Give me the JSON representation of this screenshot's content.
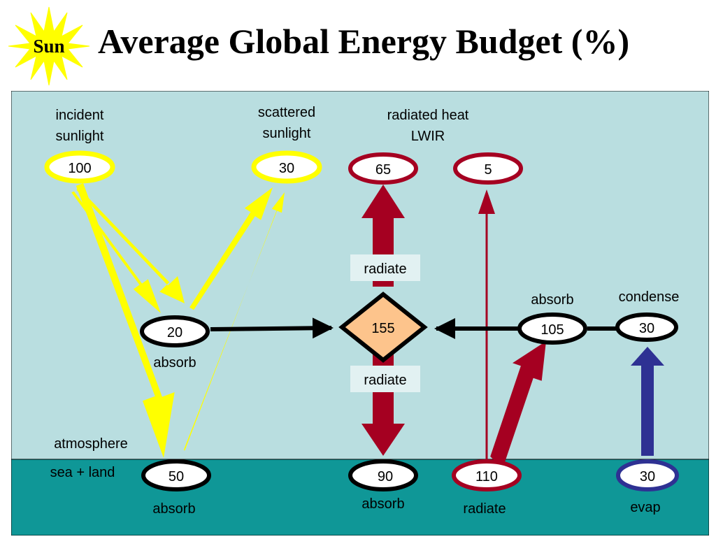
{
  "title": "Average Global Energy Budget (%)",
  "sun_label": "Sun",
  "colors": {
    "sky": "#b9dee0",
    "sea": "#0f9797",
    "sunlight": "#ffff00",
    "heat": "#a50021",
    "evaporation": "#2e3193",
    "diamond": "#fdc48c",
    "label_box": "#e2f1f2"
  },
  "zones": {
    "atmosphere": "atmosphere",
    "surface": "sea + land"
  },
  "headers": {
    "incident": [
      "incident",
      "sunlight"
    ],
    "scattered": [
      "scattered",
      "sunlight"
    ],
    "radiated": [
      "radiated heat",
      "LWIR"
    ]
  },
  "nodes": {
    "incident": "100",
    "scattered": "30",
    "space_heat_a": "65",
    "space_heat_b": "5",
    "atm_absorb": "20",
    "atm_store": "155",
    "atm_lwir": "105",
    "atm_condense": "30",
    "sfc_sun": "50",
    "sfc_lwir": "90",
    "sfc_radiate": "110",
    "sfc_evap": "30"
  },
  "labels": {
    "atm_absorb": "absorb",
    "radiate_up": "radiate",
    "radiate_down": "radiate",
    "atm_lwir": "absorb",
    "condense": "condense",
    "sfc_sun": "absorb",
    "sfc_lwir": "absorb",
    "sfc_radiate": "radiate",
    "sfc_evap": "evap"
  }
}
